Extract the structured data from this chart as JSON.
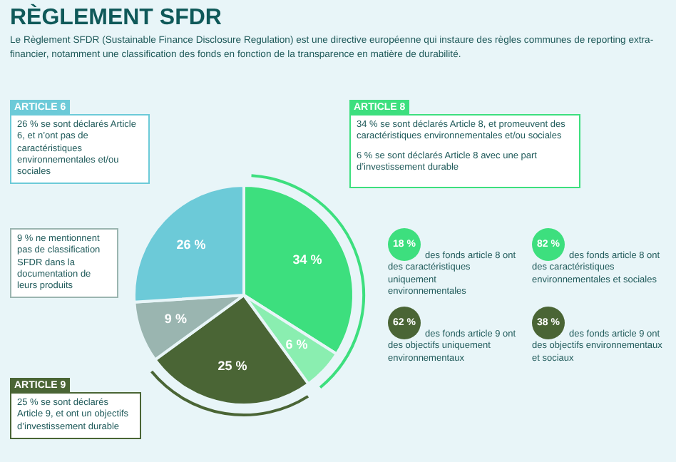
{
  "chart_data": {
    "type": "pie",
    "title": "RÈGLEMENT SFDR",
    "subtitle": "Le Règlement SFDR (Sustainable Finance Disclosure Regulation) est une directive européenne qui instaure des règles communes de reporting extra-financier, notamment une classification des fonds en fonction de la transparence en matière de durabilité.",
    "categories": [
      null,
      null,
      null,
      null,
      null
    ],
    "values": [
      34,
      6,
      25,
      9,
      26
    ],
    "colors": [
      "#3ddf7e",
      "#8aeeb0",
      "#4a6535",
      "#9ab5b0",
      "#6ccad8"
    ],
    "value_labels": [
      "34 %",
      "6 %",
      "25 %",
      "9 %",
      "26 %"
    ],
    "legend": false,
    "annotations": [
      "ARTICLE 6",
      "26 % se sont déclarés Article 6, et n’ont pas de caractéristiques environnementales et/ou sociales",
      "9 % ne mentionnent pas de classification SFDR dans la documentation de leurs produits",
      "ARTICLE 9",
      "25 % se sont déclarés Article 9, et ont un objectifs d’investissement durable",
      "ARTICLE 8",
      "34 % se sont déclarés Article 8, et promeuvent des caractéristiques environnementales et/ou sociales",
      "6 % se sont déclarés Article 8 avec une part d’investissement durable",
      "18 %",
      "des fonds article 8 ont des caractéristiques uniquement environnementales",
      "82 %",
      "des fonds article 8 ont des caractéristiques environnementales et sociales",
      "62 %",
      "des fonds article 9 ont des objectifs uniquement environnementaux",
      "38 %",
      "des fonds article 9 ont des objectifs environnementaux et sociaux"
    ]
  }
}
